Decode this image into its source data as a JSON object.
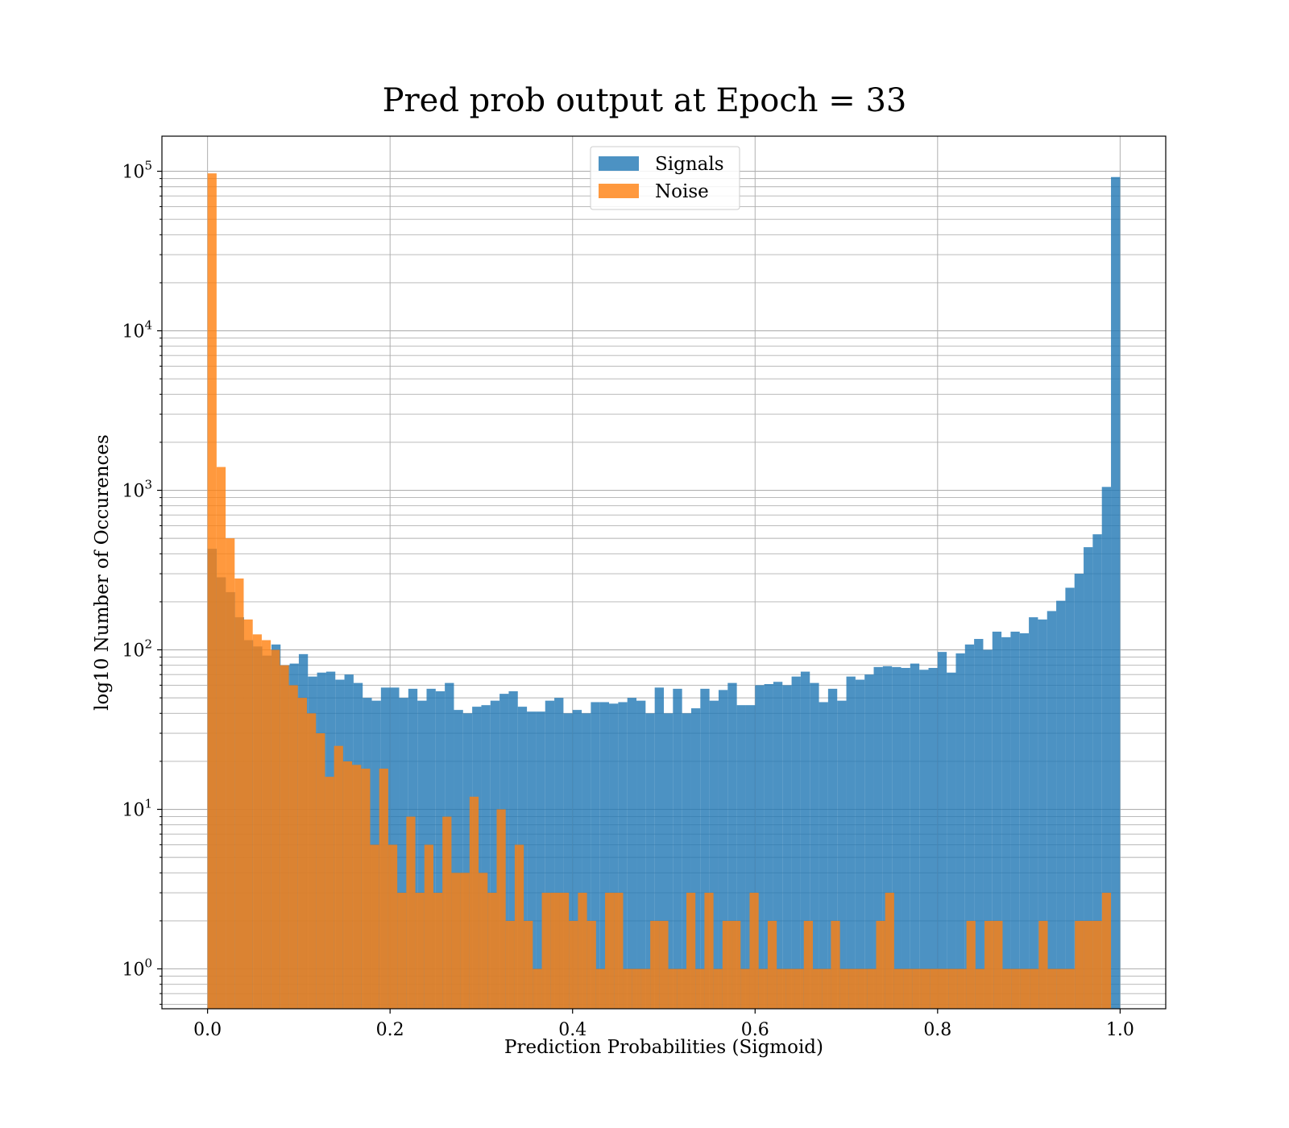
{
  "chart_data": {
    "type": "bar",
    "title": "Pred prob output at Epoch = 33",
    "xlabel": "Prediction Probabilities (Sigmoid)",
    "ylabel": "log10 Number of Occurences",
    "x_ticks": [
      "0.0",
      "0.2",
      "0.4",
      "0.6",
      "0.8",
      "1.0"
    ],
    "y_ticks": [
      {
        "base": "10",
        "exp": "0"
      },
      {
        "base": "10",
        "exp": "1"
      },
      {
        "base": "10",
        "exp": "2"
      },
      {
        "base": "10",
        "exp": "3"
      },
      {
        "base": "10",
        "exp": "4"
      },
      {
        "base": "10",
        "exp": "5"
      }
    ],
    "xlim": [
      -0.05,
      1.05
    ],
    "ylim_log10": [
      -0.25,
      5.22
    ],
    "y_scale": "log",
    "grid": true,
    "legend_position": "upper center",
    "series": [
      {
        "name": "Signals",
        "color": "#1f77b4",
        "alpha": 0.8,
        "bin_range": [
          0.0,
          1.0
        ],
        "values": [
          430,
          285,
          230,
          160,
          115,
          105,
          92,
          108,
          80,
          82,
          94,
          68,
          72,
          73,
          65,
          70,
          62,
          50,
          48,
          58,
          58,
          50,
          57,
          48,
          57,
          55,
          62,
          42,
          40,
          44,
          45,
          48,
          53,
          55,
          44,
          41,
          41,
          48,
          50,
          40,
          42,
          40,
          47,
          47,
          46,
          47,
          50,
          48,
          40,
          58,
          40,
          57,
          40,
          43,
          57,
          48,
          56,
          62,
          45,
          45,
          60,
          61,
          63,
          60,
          68,
          73,
          62,
          47,
          57,
          48,
          68,
          65,
          70,
          78,
          79,
          78,
          77,
          82,
          75,
          77,
          97,
          72,
          95,
          108,
          117,
          100,
          130,
          120,
          130,
          127,
          160,
          155,
          175,
          203,
          245,
          300,
          440,
          530,
          1050,
          92000
        ]
      },
      {
        "name": "Noise",
        "color": "#ff7f0e",
        "alpha": 0.8,
        "bin_range": [
          0.0,
          0.99
        ],
        "values": [
          97000,
          1400,
          500,
          280,
          155,
          125,
          115,
          100,
          80,
          60,
          50,
          40,
          30,
          16,
          25,
          20,
          19,
          18,
          6,
          18,
          6,
          3,
          9,
          3,
          6,
          3,
          9,
          4,
          4,
          12,
          4,
          3,
          10,
          2,
          6,
          2,
          1,
          3,
          3,
          3,
          2,
          3,
          2,
          1,
          3,
          3,
          1,
          1,
          1,
          2,
          2,
          1,
          1,
          3,
          1,
          3,
          1,
          2,
          2,
          1,
          3,
          1,
          2,
          1,
          1,
          1,
          2,
          1,
          1,
          2,
          1,
          1,
          1,
          1,
          2,
          3,
          1,
          1,
          1,
          1,
          1,
          1,
          1,
          1,
          2,
          1,
          2,
          2,
          1,
          1,
          1,
          1,
          2,
          1,
          1,
          1,
          2,
          2,
          2,
          3
        ]
      }
    ]
  }
}
